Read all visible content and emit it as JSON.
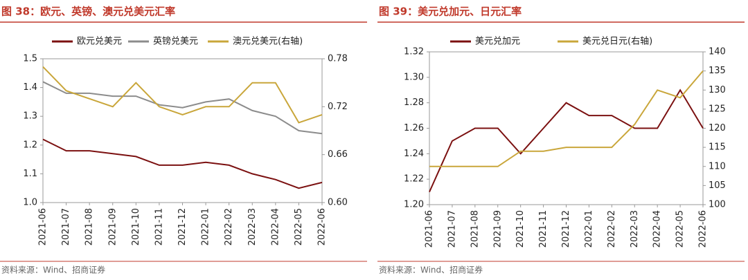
{
  "chart_data": [
    {
      "type": "line",
      "title": "图 38：欧元、英镑、澳元兑美元汇率",
      "categories": [
        "2021-06",
        "2021-07",
        "2021-08",
        "2021-09",
        "2021-10",
        "2021-11",
        "2021-12",
        "2022-01",
        "2022-02",
        "2022-03",
        "2022-04",
        "2022-05",
        "2022-06"
      ],
      "series": [
        {
          "name": "欧元兑美元",
          "color": "#7b1010",
          "values": [
            1.22,
            1.18,
            1.18,
            1.17,
            1.16,
            1.13,
            1.13,
            1.14,
            1.13,
            1.1,
            1.08,
            1.05,
            1.07
          ]
        },
        {
          "name": "英镑兑美元",
          "color": "#8c8c8c",
          "values": [
            1.42,
            1.38,
            1.38,
            1.37,
            1.37,
            1.34,
            1.33,
            1.35,
            1.36,
            1.32,
            1.3,
            1.25,
            1.24
          ]
        },
        {
          "name": "澳元兑美元(右轴)",
          "color": "#c9a63a",
          "axis": "y2",
          "values": [
            0.77,
            0.74,
            0.73,
            0.72,
            0.75,
            0.72,
            0.71,
            0.72,
            0.72,
            0.75,
            0.75,
            0.7,
            0.71
          ]
        }
      ],
      "ylim": [
        1.0,
        1.5
      ],
      "yticks": [
        {
          "value": 1,
          "label": "1.0"
        },
        1.1,
        1.2,
        1.3,
        1.4,
        1.5
      ],
      "y2lim": [
        0.6,
        0.78
      ],
      "y2ticks": [
        {
          "value": 0.6,
          "label": "0.60"
        },
        0.66,
        0.72,
        0.78
      ],
      "source": "资料来源：Wind、招商证券"
    },
    {
      "type": "line",
      "title": "图 39：美元兑加元、日元汇率",
      "categories": [
        "2021-06",
        "2021-07",
        "2021-08",
        "2021-09",
        "2021-10",
        "2021-11",
        "2021-12",
        "2022-01",
        "2022-02",
        "2022-03",
        "2022-04",
        "2022-05",
        "2022-06"
      ],
      "series": [
        {
          "name": "美元兑加元",
          "color": "#7b1010",
          "values": [
            1.21,
            1.25,
            1.26,
            1.26,
            1.24,
            1.26,
            1.28,
            1.27,
            1.27,
            1.26,
            1.26,
            1.29,
            1.26
          ]
        },
        {
          "name": "美元兑日元(右轴)",
          "color": "#c9a63a",
          "axis": "y2",
          "values": [
            110,
            110,
            110,
            110,
            114,
            114,
            115,
            115,
            115,
            121,
            130,
            128,
            135
          ]
        }
      ],
      "ylim": [
        1.2,
        1.32
      ],
      "yticks": [
        {
          "value": 1.2,
          "label": "1.20"
        },
        1.22,
        1.24,
        1.26,
        1.28,
        {
          "value": 1.3,
          "label": "1.30"
        },
        1.32
      ],
      "y2lim": [
        100,
        140
      ],
      "y2ticks": [
        100,
        105,
        110,
        115,
        120,
        125,
        130,
        135,
        140
      ],
      "source": "资料来源：Wind、招商证券"
    }
  ]
}
